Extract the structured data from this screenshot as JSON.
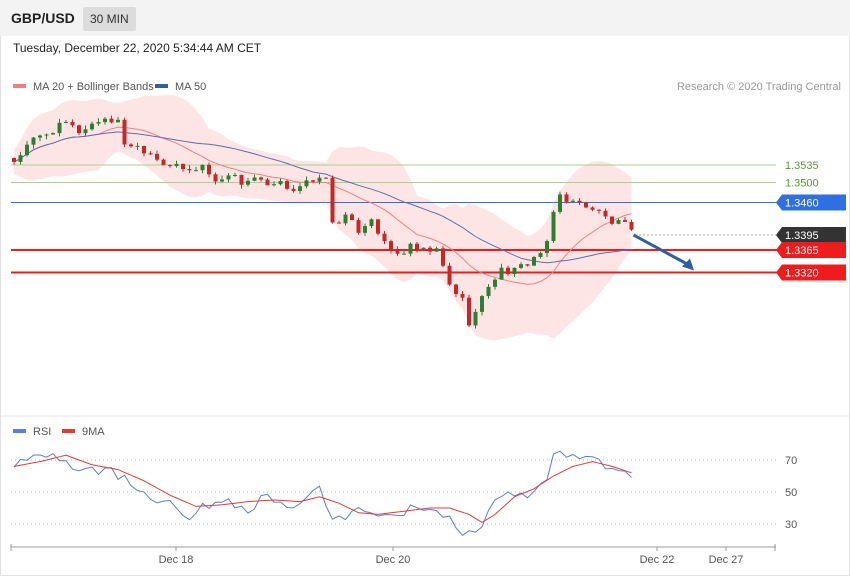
{
  "header": {
    "symbol": "GBP/USD",
    "timeframe": "30 MIN"
  },
  "datetime": "Tuesday, December 22, 2020 5:34:44 AM CET",
  "legend": {
    "ma20_label": "MA 20 + Bollinger Bands",
    "ma50_label": "MA 50",
    "credit": "Research © 2020 Trading Central"
  },
  "rsi_legend": {
    "rsi_label": "RSI",
    "ma_label": "9MA"
  },
  "colors": {
    "up": "#2e7d32",
    "down": "#c62828",
    "band": "#fde1e1",
    "ma20": "#f08080",
    "ma50": "#5b6fa8",
    "support": "#ee1c1c",
    "resistance_green": "#a8cf8e",
    "pivot": "#2f6fe0",
    "last": "#333333",
    "arrow": "#2f5fa0"
  },
  "chart_data": [
    {
      "type": "candlestick",
      "title": "GBP/USD 30 MIN",
      "y_range": [
        1.316,
        1.37
      ],
      "x_ticks": [
        "Dec 18",
        "Dec 20",
        "Dec 22",
        "Dec 27"
      ],
      "series": [
        {
          "name": "MA 20 + Bollinger Bands",
          "kind": "line+band"
        },
        {
          "name": "MA 50",
          "kind": "line"
        }
      ],
      "price_path": [
        [
          0,
          1.3543
        ],
        [
          3,
          1.3585
        ],
        [
          6,
          1.3605
        ],
        [
          8,
          1.3618
        ],
        [
          10,
          1.3602
        ],
        [
          12,
          1.3617
        ],
        [
          14,
          1.3629
        ],
        [
          16,
          1.362
        ],
        [
          17,
          1.358
        ],
        [
          19,
          1.3572
        ],
        [
          21,
          1.356
        ],
        [
          23,
          1.354
        ],
        [
          25,
          1.353
        ],
        [
          27,
          1.3522
        ],
        [
          29,
          1.3535
        ],
        [
          31,
          1.35
        ],
        [
          33,
          1.352
        ],
        [
          35,
          1.35
        ],
        [
          37,
          1.351
        ],
        [
          39,
          1.349
        ],
        [
          41,
          1.3496
        ],
        [
          43,
          1.3488
        ],
        [
          45,
          1.35
        ],
        [
          46,
          1.3495
        ],
        [
          47,
          1.3515
        ],
        [
          48,
          1.3505
        ],
        [
          49,
          1.342
        ],
        [
          51,
          1.343
        ],
        [
          53,
          1.3405
        ],
        [
          55,
          1.343
        ],
        [
          57,
          1.3375
        ],
        [
          59,
          1.3355
        ],
        [
          61,
          1.337
        ],
        [
          63,
          1.3362
        ],
        [
          65,
          1.3364
        ],
        [
          66,
          1.333
        ],
        [
          67,
          1.3295
        ],
        [
          69,
          1.3265
        ],
        [
          70,
          1.3222
        ],
        [
          71,
          1.324
        ],
        [
          73,
          1.3295
        ],
        [
          75,
          1.3325
        ],
        [
          77,
          1.3322
        ],
        [
          79,
          1.334
        ],
        [
          81,
          1.336
        ],
        [
          82,
          1.3375
        ],
        [
          83,
          1.344
        ],
        [
          84,
          1.3475
        ],
        [
          86,
          1.346
        ],
        [
          88,
          1.3455
        ],
        [
          90,
          1.344
        ],
        [
          92,
          1.342
        ],
        [
          94,
          1.3415
        ],
        [
          95,
          1.3398
        ]
      ],
      "annotations": [
        {
          "label": "1.3535",
          "kind": "resistance"
        },
        {
          "label": "1.3500",
          "kind": "resistance"
        },
        {
          "label": "1.3460",
          "kind": "pivot"
        },
        {
          "label": "1.3395",
          "kind": "last"
        },
        {
          "label": "1.3365",
          "kind": "support"
        },
        {
          "label": "1.3320",
          "kind": "support"
        }
      ],
      "forecast_arrow": {
        "from": [
          95,
          1.3395
        ],
        "to": [
          104,
          1.332
        ]
      }
    },
    {
      "type": "line",
      "title": "RSI",
      "y_range": [
        20,
        80
      ],
      "y_ticks": [
        "70",
        "50",
        "30"
      ],
      "series": [
        {
          "name": "RSI",
          "color": "#5b7fd6"
        },
        {
          "name": "9MA",
          "color": "#e53935"
        }
      ],
      "rsi_path": [
        [
          0,
          68
        ],
        [
          3,
          72
        ],
        [
          6,
          76
        ],
        [
          9,
          66
        ],
        [
          12,
          65
        ],
        [
          15,
          63
        ],
        [
          18,
          55
        ],
        [
          21,
          48
        ],
        [
          24,
          44
        ],
        [
          27,
          35
        ],
        [
          30,
          42
        ],
        [
          33,
          45
        ],
        [
          36,
          40
        ],
        [
          39,
          47
        ],
        [
          42,
          41
        ],
        [
          45,
          44
        ],
        [
          47,
          52
        ],
        [
          49,
          30
        ],
        [
          52,
          38
        ],
        [
          55,
          40
        ],
        [
          57,
          33
        ],
        [
          60,
          37
        ],
        [
          63,
          42
        ],
        [
          66,
          36
        ],
        [
          69,
          26
        ],
        [
          71,
          22
        ],
        [
          73,
          40
        ],
        [
          76,
          50
        ],
        [
          79,
          48
        ],
        [
          82,
          55
        ],
        [
          83,
          76
        ],
        [
          85,
          70
        ],
        [
          87,
          73
        ],
        [
          89,
          70
        ],
        [
          91,
          66
        ],
        [
          93,
          63
        ],
        [
          95,
          59
        ]
      ],
      "ma_path": [
        [
          0,
          66
        ],
        [
          4,
          69
        ],
        [
          8,
          73
        ],
        [
          12,
          67
        ],
        [
          16,
          64
        ],
        [
          20,
          57
        ],
        [
          24,
          48
        ],
        [
          28,
          41
        ],
        [
          32,
          42
        ],
        [
          36,
          44
        ],
        [
          40,
          45
        ],
        [
          44,
          44
        ],
        [
          47,
          47
        ],
        [
          50,
          43
        ],
        [
          53,
          37
        ],
        [
          56,
          36
        ],
        [
          60,
          38
        ],
        [
          64,
          40
        ],
        [
          67,
          40
        ],
        [
          70,
          36
        ],
        [
          72,
          31
        ],
        [
          74,
          36
        ],
        [
          77,
          47
        ],
        [
          80,
          52
        ],
        [
          83,
          60
        ],
        [
          86,
          66
        ],
        [
          89,
          69
        ],
        [
          92,
          66
        ],
        [
          95,
          62
        ]
      ]
    }
  ]
}
